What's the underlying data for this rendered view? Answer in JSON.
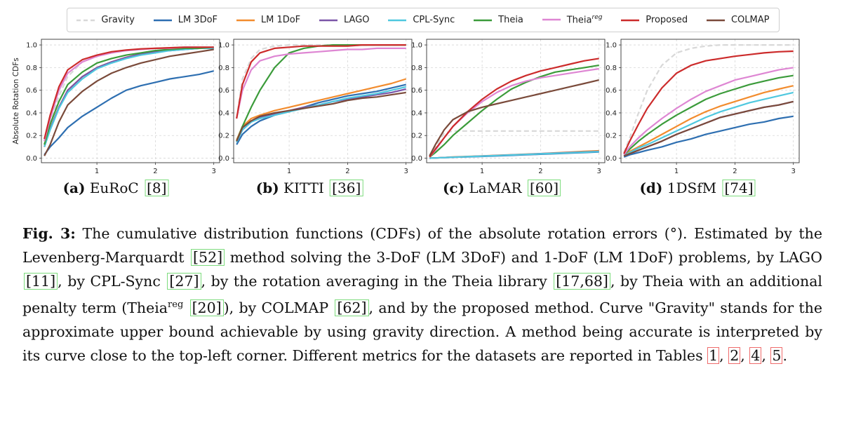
{
  "legend": {
    "items": [
      {
        "name": "Gravity",
        "color": "#d8d8d8",
        "dashed": true
      },
      {
        "name": "LM 3DoF",
        "color": "#2e6fb1"
      },
      {
        "name": "LM 1DoF",
        "color": "#f28c2e"
      },
      {
        "name": "LAGO",
        "color": "#7b55a8"
      },
      {
        "name": "CPL-Sync",
        "color": "#4fc8df"
      },
      {
        "name": "Theia",
        "color": "#3b9b3a"
      },
      {
        "name": "Theia",
        "sup": "reg",
        "color": "#de86d3"
      },
      {
        "name": "Proposed",
        "color": "#cc2b2b"
      },
      {
        "name": "COLMAP",
        "color": "#7a4a3a"
      }
    ]
  },
  "chart_data": [
    {
      "type": "line",
      "ylabel": "Absolute Rotation CDFs",
      "xlim": [
        0.05,
        3.1
      ],
      "ylim": [
        -0.04,
        1.05
      ],
      "xticks": [
        "1",
        "2",
        "3"
      ],
      "yticks": [
        "0.0",
        "0.2",
        "0.4",
        "0.6",
        "0.8",
        "1.0"
      ],
      "caption": {
        "letter": "(a)",
        "name": "EuRoC",
        "ref": "8"
      },
      "x": [
        0.1,
        0.2,
        0.35,
        0.5,
        0.75,
        1.0,
        1.25,
        1.5,
        1.75,
        2.0,
        2.25,
        2.5,
        2.75,
        3.0
      ],
      "series": [
        {
          "name": "Gravity",
          "values": [
            0.1,
            0.3,
            0.55,
            0.72,
            0.85,
            0.9,
            0.93,
            0.95,
            0.96,
            0.97,
            0.975,
            0.98,
            0.98,
            0.98
          ]
        },
        {
          "name": "LM 3DoF",
          "values": [
            0.03,
            0.1,
            0.18,
            0.27,
            0.37,
            0.45,
            0.53,
            0.6,
            0.64,
            0.67,
            0.7,
            0.72,
            0.74,
            0.77
          ]
        },
        {
          "name": "LM 1DoF",
          "values": [
            0.1,
            0.26,
            0.45,
            0.6,
            0.72,
            0.8,
            0.85,
            0.89,
            0.92,
            0.94,
            0.96,
            0.97,
            0.97,
            0.98
          ]
        },
        {
          "name": "LAGO",
          "values": [
            0.1,
            0.26,
            0.45,
            0.6,
            0.72,
            0.8,
            0.85,
            0.89,
            0.92,
            0.94,
            0.95,
            0.96,
            0.97,
            0.97
          ]
        },
        {
          "name": "CPL-Sync",
          "values": [
            0.1,
            0.25,
            0.44,
            0.58,
            0.7,
            0.79,
            0.84,
            0.88,
            0.91,
            0.93,
            0.95,
            0.96,
            0.97,
            0.97
          ]
        },
        {
          "name": "Theia",
          "values": [
            0.12,
            0.3,
            0.5,
            0.65,
            0.76,
            0.84,
            0.88,
            0.91,
            0.93,
            0.95,
            0.96,
            0.97,
            0.97,
            0.98
          ]
        },
        {
          "name": "Theia^reg",
          "values": [
            0.15,
            0.35,
            0.6,
            0.75,
            0.85,
            0.9,
            0.93,
            0.95,
            0.96,
            0.97,
            0.97,
            0.98,
            0.98,
            0.98
          ]
        },
        {
          "name": "Proposed",
          "values": [
            0.17,
            0.38,
            0.63,
            0.78,
            0.87,
            0.91,
            0.94,
            0.955,
            0.965,
            0.97,
            0.975,
            0.98,
            0.98,
            0.98
          ]
        },
        {
          "name": "COLMAP",
          "values": [
            0.02,
            0.12,
            0.32,
            0.47,
            0.59,
            0.68,
            0.75,
            0.8,
            0.84,
            0.87,
            0.9,
            0.92,
            0.94,
            0.96
          ]
        }
      ]
    },
    {
      "type": "line",
      "xlim": [
        0.05,
        3.1
      ],
      "ylim": [
        -0.04,
        1.05
      ],
      "xticks": [
        "1",
        "2",
        "3"
      ],
      "yticks": [
        "0.0",
        "0.2",
        "0.4",
        "0.6",
        "0.8",
        "1.0"
      ],
      "caption": {
        "letter": "(b)",
        "name": "KITTI",
        "ref": "36"
      },
      "x": [
        0.1,
        0.2,
        0.35,
        0.5,
        0.75,
        1.0,
        1.25,
        1.5,
        1.75,
        2.0,
        2.25,
        2.5,
        2.75,
        3.0
      ],
      "series": [
        {
          "name": "Gravity",
          "values": [
            0.35,
            0.7,
            0.88,
            0.96,
            0.99,
            1.0,
            1.0,
            1.0,
            1.0,
            1.0,
            1.0,
            1.0,
            1.0,
            1.0
          ]
        },
        {
          "name": "LM 3DoF",
          "values": [
            0.12,
            0.21,
            0.28,
            0.33,
            0.38,
            0.41,
            0.45,
            0.49,
            0.52,
            0.55,
            0.57,
            0.59,
            0.62,
            0.65
          ]
        },
        {
          "name": "LM 1DoF",
          "values": [
            0.16,
            0.28,
            0.35,
            0.38,
            0.42,
            0.45,
            0.48,
            0.51,
            0.54,
            0.57,
            0.6,
            0.63,
            0.66,
            0.7
          ]
        },
        {
          "name": "LAGO",
          "values": [
            0.14,
            0.25,
            0.32,
            0.36,
            0.39,
            0.42,
            0.45,
            0.47,
            0.5,
            0.52,
            0.54,
            0.56,
            0.58,
            0.61
          ]
        },
        {
          "name": "CPL-Sync",
          "values": [
            0.14,
            0.25,
            0.32,
            0.35,
            0.38,
            0.41,
            0.44,
            0.47,
            0.5,
            0.53,
            0.55,
            0.57,
            0.6,
            0.63
          ]
        },
        {
          "name": "Theia",
          "values": [
            0.15,
            0.28,
            0.45,
            0.6,
            0.8,
            0.93,
            0.97,
            0.99,
            1.0,
            1.0,
            1.0,
            1.0,
            1.0,
            1.0
          ]
        },
        {
          "name": "Theia^reg",
          "values": [
            0.35,
            0.6,
            0.78,
            0.86,
            0.9,
            0.92,
            0.93,
            0.94,
            0.95,
            0.96,
            0.96,
            0.97,
            0.97,
            0.97
          ]
        },
        {
          "name": "Proposed",
          "values": [
            0.35,
            0.65,
            0.85,
            0.93,
            0.97,
            0.98,
            0.99,
            0.99,
            0.99,
            0.99,
            1.0,
            1.0,
            1.0,
            1.0
          ]
        },
        {
          "name": "COLMAP",
          "values": [
            0.15,
            0.27,
            0.33,
            0.37,
            0.4,
            0.42,
            0.44,
            0.46,
            0.48,
            0.51,
            0.53,
            0.54,
            0.56,
            0.58
          ]
        }
      ]
    },
    {
      "type": "line",
      "xlim": [
        0.05,
        3.1
      ],
      "ylim": [
        -0.04,
        1.05
      ],
      "xticks": [
        "1",
        "2",
        "3"
      ],
      "yticks": [
        "0.0",
        "0.2",
        "0.4",
        "0.6",
        "0.8",
        "1.0"
      ],
      "caption": {
        "letter": "(c)",
        "name": "LaMAR",
        "ref": "60"
      },
      "x": [
        0.1,
        0.2,
        0.35,
        0.5,
        0.75,
        1.0,
        1.25,
        1.5,
        1.75,
        2.0,
        2.25,
        2.5,
        2.75,
        3.0
      ],
      "series": [
        {
          "name": "Gravity",
          "values": [
            0.01,
            0.1,
            0.22,
            0.24,
            0.24,
            0.24,
            0.24,
            0.24,
            0.24,
            0.24,
            0.24,
            0.24,
            0.24,
            0.24
          ]
        },
        {
          "name": "LM 3DoF",
          "values": [
            0.0,
            0.002,
            0.005,
            0.008,
            0.012,
            0.016,
            0.02,
            0.025,
            0.03,
            0.035,
            0.04,
            0.045,
            0.05,
            0.055
          ]
        },
        {
          "name": "LM 1DoF",
          "values": [
            0.0,
            0.002,
            0.006,
            0.01,
            0.015,
            0.02,
            0.025,
            0.03,
            0.035,
            0.04,
            0.047,
            0.053,
            0.06,
            0.065
          ]
        },
        {
          "name": "LAGO",
          "values": [
            0.0,
            0.002,
            0.005,
            0.009,
            0.014,
            0.019,
            0.024,
            0.029,
            0.034,
            0.04,
            0.045,
            0.05,
            0.055,
            0.06
          ]
        },
        {
          "name": "CPL-Sync",
          "values": [
            0.0,
            0.002,
            0.005,
            0.008,
            0.013,
            0.018,
            0.023,
            0.028,
            0.033,
            0.038,
            0.043,
            0.048,
            0.053,
            0.058
          ]
        },
        {
          "name": "Theia",
          "values": [
            0.01,
            0.05,
            0.12,
            0.2,
            0.31,
            0.42,
            0.52,
            0.61,
            0.67,
            0.72,
            0.76,
            0.78,
            0.8,
            0.82
          ]
        },
        {
          "name": "Theia^reg",
          "values": [
            0.01,
            0.07,
            0.18,
            0.28,
            0.4,
            0.5,
            0.58,
            0.64,
            0.68,
            0.71,
            0.73,
            0.75,
            0.77,
            0.79
          ]
        },
        {
          "name": "Proposed",
          "values": [
            0.01,
            0.08,
            0.18,
            0.28,
            0.41,
            0.52,
            0.61,
            0.68,
            0.73,
            0.77,
            0.8,
            0.83,
            0.86,
            0.88
          ]
        },
        {
          "name": "COLMAP",
          "values": [
            0.02,
            0.12,
            0.25,
            0.34,
            0.41,
            0.45,
            0.48,
            0.51,
            0.54,
            0.57,
            0.6,
            0.63,
            0.66,
            0.69
          ]
        }
      ]
    },
    {
      "type": "line",
      "xlim": [
        0.05,
        3.1
      ],
      "ylim": [
        -0.04,
        1.05
      ],
      "xticks": [
        "1",
        "2",
        "3"
      ],
      "yticks": [
        "0.0",
        "0.2",
        "0.4",
        "0.6",
        "0.8",
        "1.0"
      ],
      "caption": {
        "letter": "(d)",
        "name": "1DSfM",
        "ref": "74"
      },
      "x": [
        0.1,
        0.2,
        0.35,
        0.5,
        0.75,
        1.0,
        1.25,
        1.5,
        1.75,
        2.0,
        2.25,
        2.5,
        2.75,
        3.0
      ],
      "series": [
        {
          "name": "Gravity",
          "values": [
            0.05,
            0.18,
            0.4,
            0.6,
            0.82,
            0.93,
            0.97,
            0.99,
            1.0,
            1.0,
            1.0,
            1.0,
            1.0,
            1.0
          ]
        },
        {
          "name": "LM 3DoF",
          "values": [
            0.01,
            0.03,
            0.05,
            0.07,
            0.1,
            0.14,
            0.17,
            0.21,
            0.24,
            0.27,
            0.3,
            0.32,
            0.35,
            0.37
          ]
        },
        {
          "name": "LM 1DoF",
          "values": [
            0.02,
            0.06,
            0.1,
            0.14,
            0.21,
            0.28,
            0.35,
            0.41,
            0.46,
            0.5,
            0.54,
            0.58,
            0.61,
            0.64
          ]
        },
        {
          "name": "LAGO",
          "values": [
            0.02,
            0.04,
            0.07,
            0.1,
            0.15,
            0.21,
            0.26,
            0.31,
            0.36,
            0.39,
            0.42,
            0.45,
            0.47,
            0.5
          ]
        },
        {
          "name": "CPL-Sync",
          "values": [
            0.02,
            0.05,
            0.09,
            0.12,
            0.18,
            0.24,
            0.3,
            0.36,
            0.41,
            0.45,
            0.49,
            0.52,
            0.55,
            0.58
          ]
        },
        {
          "name": "Theia",
          "values": [
            0.03,
            0.08,
            0.15,
            0.21,
            0.3,
            0.38,
            0.45,
            0.52,
            0.57,
            0.61,
            0.65,
            0.68,
            0.71,
            0.73
          ]
        },
        {
          "name": "Theia^reg",
          "values": [
            0.03,
            0.1,
            0.18,
            0.25,
            0.35,
            0.44,
            0.52,
            0.59,
            0.64,
            0.69,
            0.72,
            0.75,
            0.78,
            0.8
          ]
        },
        {
          "name": "Proposed",
          "values": [
            0.04,
            0.15,
            0.3,
            0.44,
            0.62,
            0.75,
            0.82,
            0.86,
            0.88,
            0.9,
            0.915,
            0.93,
            0.94,
            0.945
          ]
        },
        {
          "name": "COLMAP",
          "values": [
            0.02,
            0.04,
            0.07,
            0.1,
            0.15,
            0.21,
            0.26,
            0.31,
            0.36,
            0.39,
            0.42,
            0.45,
            0.47,
            0.5
          ]
        }
      ]
    }
  ],
  "caption": {
    "label": "Fig. 3:",
    "p1": " The cumulative distribution functions (CDFs) of the absolute rotation errors (°). Estimated by the Levenberg-Marquardt ",
    "r1": "[52]",
    "p2": " method solving the 3-DoF (LM 3DoF) and 1-DoF (LM 1DoF) problems, by LAGO ",
    "r2": "[11]",
    "p3": ", by CPL-Sync ",
    "r3": "[27]",
    "p4": ", by the rotation averaging in the Theia library ",
    "r4": "[17,68]",
    "p5": ", by Theia with an additional penalty term (Theia",
    "sup": "reg",
    "r5": "[20]",
    "p6": "), by COLMAP ",
    "r6": "[62]",
    "p7": ", and by the proposed method. Curve \"Gravity\" stands for the approximate upper bound achievable by using gravity direction. A method being accurate is interpreted by its curve close to the top-left corner. Different metrics for the datasets are reported in Tables ",
    "t1": "1",
    "c1": ", ",
    "t2": "2",
    "c2": ", ",
    "t3": "4",
    "c3": ", ",
    "t4": "5",
    "end": "."
  }
}
